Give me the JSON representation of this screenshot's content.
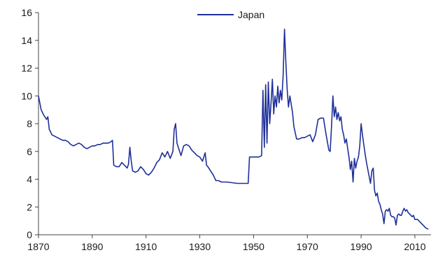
{
  "chart_data": {
    "type": "line",
    "title": "",
    "xlabel": "",
    "ylabel": "",
    "xlim": [
      1870,
      2016
    ],
    "ylim": [
      0,
      16
    ],
    "x_ticks": [
      1870,
      1890,
      1910,
      1930,
      1950,
      1970,
      1990,
      2010
    ],
    "y_ticks": [
      0,
      2,
      4,
      6,
      8,
      10,
      12,
      14,
      16
    ],
    "grid": false,
    "legend_position": "top-center",
    "series": [
      {
        "name": "Japan",
        "color": "#1f2f99",
        "points": [
          [
            1870,
            10.0
          ],
          [
            1871,
            9.0
          ],
          [
            1872,
            8.6
          ],
          [
            1873,
            8.3
          ],
          [
            1873.5,
            8.5
          ],
          [
            1874,
            7.6
          ],
          [
            1875,
            7.2
          ],
          [
            1876,
            7.1
          ],
          [
            1877,
            7.0
          ],
          [
            1878,
            6.9
          ],
          [
            1879,
            6.8
          ],
          [
            1880,
            6.8
          ],
          [
            1881,
            6.7
          ],
          [
            1882,
            6.5
          ],
          [
            1883,
            6.4
          ],
          [
            1884,
            6.5
          ],
          [
            1885,
            6.6
          ],
          [
            1886,
            6.5
          ],
          [
            1887,
            6.3
          ],
          [
            1888,
            6.2
          ],
          [
            1889,
            6.3
          ],
          [
            1890,
            6.4
          ],
          [
            1891,
            6.4
          ],
          [
            1892,
            6.5
          ],
          [
            1893,
            6.5
          ],
          [
            1894,
            6.6
          ],
          [
            1895,
            6.6
          ],
          [
            1896,
            6.6
          ],
          [
            1897,
            6.7
          ],
          [
            1897.5,
            6.8
          ],
          [
            1898,
            5.0
          ],
          [
            1899,
            4.9
          ],
          [
            1900,
            4.9
          ],
          [
            1901,
            5.2
          ],
          [
            1902,
            5.0
          ],
          [
            1903,
            4.8
          ],
          [
            1903.5,
            5.1
          ],
          [
            1904,
            6.3
          ],
          [
            1904.5,
            5.3
          ],
          [
            1905,
            4.6
          ],
          [
            1906,
            4.5
          ],
          [
            1907,
            4.6
          ],
          [
            1908,
            4.9
          ],
          [
            1909,
            4.7
          ],
          [
            1910,
            4.4
          ],
          [
            1911,
            4.3
          ],
          [
            1912,
            4.5
          ],
          [
            1913,
            4.8
          ],
          [
            1914,
            5.2
          ],
          [
            1915,
            5.4
          ],
          [
            1916,
            5.9
          ],
          [
            1917,
            5.6
          ],
          [
            1918,
            6.0
          ],
          [
            1919,
            5.5
          ],
          [
            1920,
            6.0
          ],
          [
            1920.5,
            7.6
          ],
          [
            1921,
            8.0
          ],
          [
            1921.5,
            6.6
          ],
          [
            1922,
            6.3
          ],
          [
            1923,
            5.7
          ],
          [
            1924,
            6.4
          ],
          [
            1925,
            6.5
          ],
          [
            1926,
            6.4
          ],
          [
            1927,
            6.1
          ],
          [
            1928,
            5.9
          ],
          [
            1929,
            5.7
          ],
          [
            1930,
            5.6
          ],
          [
            1931,
            5.3
          ],
          [
            1932,
            5.9
          ],
          [
            1932.5,
            5.0
          ],
          [
            1933,
            4.9
          ],
          [
            1934,
            4.6
          ],
          [
            1935,
            4.3
          ],
          [
            1936,
            3.9
          ],
          [
            1937,
            3.9
          ],
          [
            1938,
            3.8
          ],
          [
            1940,
            3.8
          ],
          [
            1942,
            3.75
          ],
          [
            1944,
            3.7
          ],
          [
            1946,
            3.7
          ],
          [
            1948,
            3.7
          ],
          [
            1948.5,
            5.6
          ],
          [
            1950,
            5.6
          ],
          [
            1951,
            5.6
          ],
          [
            1952,
            5.6
          ],
          [
            1953,
            5.7
          ],
          [
            1953.5,
            10.4
          ],
          [
            1954,
            6.3
          ],
          [
            1954.5,
            10.8
          ],
          [
            1955,
            6.6
          ],
          [
            1955.5,
            11.0
          ],
          [
            1956,
            8.0
          ],
          [
            1956.5,
            9.5
          ],
          [
            1957,
            11.2
          ],
          [
            1957.5,
            8.7
          ],
          [
            1958,
            10.0
          ],
          [
            1958.5,
            9.2
          ],
          [
            1959,
            10.7
          ],
          [
            1959.5,
            9.5
          ],
          [
            1960,
            10.4
          ],
          [
            1960.5,
            9.7
          ],
          [
            1961,
            11.5
          ],
          [
            1961.5,
            14.8
          ],
          [
            1962,
            12.5
          ],
          [
            1962.5,
            10.5
          ],
          [
            1963,
            9.2
          ],
          [
            1963.5,
            10.0
          ],
          [
            1964,
            9.4
          ],
          [
            1964.5,
            8.8
          ],
          [
            1965,
            7.8
          ],
          [
            1966,
            6.9
          ],
          [
            1967,
            6.9
          ],
          [
            1968,
            7.0
          ],
          [
            1969,
            7.0
          ],
          [
            1970,
            7.1
          ],
          [
            1971,
            7.2
          ],
          [
            1972,
            6.7
          ],
          [
            1973,
            7.2
          ],
          [
            1974,
            8.3
          ],
          [
            1975,
            8.4
          ],
          [
            1976,
            8.4
          ],
          [
            1977,
            7.2
          ],
          [
            1978,
            6.1
          ],
          [
            1978.5,
            6.0
          ],
          [
            1979,
            7.8
          ],
          [
            1979.5,
            10.0
          ],
          [
            1980,
            8.5
          ],
          [
            1980.5,
            9.2
          ],
          [
            1981,
            8.3
          ],
          [
            1981.5,
            8.8
          ],
          [
            1982,
            8.2
          ],
          [
            1982.5,
            8.5
          ],
          [
            1983,
            7.6
          ],
          [
            1983.5,
            7.2
          ],
          [
            1984,
            6.6
          ],
          [
            1984.5,
            6.9
          ],
          [
            1985,
            6.2
          ],
          [
            1985.5,
            5.6
          ],
          [
            1986,
            4.7
          ],
          [
            1986.5,
            5.3
          ],
          [
            1987,
            3.8
          ],
          [
            1987.5,
            5.5
          ],
          [
            1988,
            4.8
          ],
          [
            1988.5,
            5.3
          ],
          [
            1989,
            5.6
          ],
          [
            1989.5,
            6.4
          ],
          [
            1990,
            8.0
          ],
          [
            1990.5,
            7.2
          ],
          [
            1991,
            6.5
          ],
          [
            1991.5,
            5.8
          ],
          [
            1992,
            5.2
          ],
          [
            1992.5,
            4.7
          ],
          [
            1993,
            4.2
          ],
          [
            1993.5,
            3.7
          ],
          [
            1994,
            4.6
          ],
          [
            1994.5,
            4.8
          ],
          [
            1995,
            3.2
          ],
          [
            1995.5,
            2.8
          ],
          [
            1996,
            3.0
          ],
          [
            1996.5,
            2.4
          ],
          [
            1997,
            2.2
          ],
          [
            1997.5,
            1.8
          ],
          [
            1998,
            1.5
          ],
          [
            1998.5,
            0.8
          ],
          [
            1999,
            1.7
          ],
          [
            1999.5,
            1.8
          ],
          [
            2000,
            1.7
          ],
          [
            2000.5,
            1.9
          ],
          [
            2001,
            1.4
          ],
          [
            2001.5,
            1.3
          ],
          [
            2002,
            1.3
          ],
          [
            2002.5,
            1.2
          ],
          [
            2003,
            0.7
          ],
          [
            2003.5,
            1.4
          ],
          [
            2004,
            1.5
          ],
          [
            2004.5,
            1.4
          ],
          [
            2005,
            1.4
          ],
          [
            2005.5,
            1.7
          ],
          [
            2006,
            1.9
          ],
          [
            2006.5,
            1.7
          ],
          [
            2007,
            1.8
          ],
          [
            2007.5,
            1.6
          ],
          [
            2008,
            1.5
          ],
          [
            2008.5,
            1.4
          ],
          [
            2009,
            1.3
          ],
          [
            2009.5,
            1.4
          ],
          [
            2010,
            1.1
          ],
          [
            2011,
            1.1
          ],
          [
            2012,
            0.9
          ],
          [
            2013,
            0.7
          ],
          [
            2014,
            0.5
          ],
          [
            2015,
            0.4
          ]
        ]
      }
    ]
  }
}
